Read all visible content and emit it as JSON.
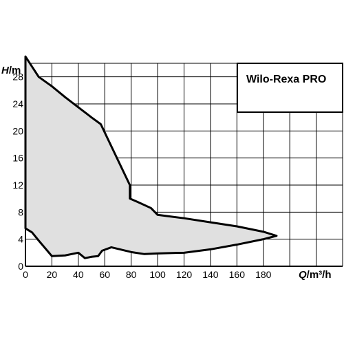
{
  "chart_data": {
    "type": "area",
    "title": "Wilo-Rexa PRO",
    "ylabel_var": "H",
    "ylabel_unit": "/m",
    "xlabel_var": "Q",
    "xlabel_unit": "/m³/h",
    "xlim": [
      0,
      240
    ],
    "ylim": [
      0,
      30
    ],
    "xticks": [
      0,
      20,
      40,
      60,
      80,
      100,
      120,
      140,
      160,
      180
    ],
    "yticks": [
      0,
      4,
      8,
      12,
      16,
      20,
      24,
      28
    ],
    "grid": true,
    "fill_color": "#e0e0e0",
    "line_color": "#000000",
    "upper_curve": [
      {
        "x": 0,
        "y": 31
      },
      {
        "x": 5,
        "y": 29.5
      },
      {
        "x": 10,
        "y": 28
      },
      {
        "x": 20,
        "y": 26.6
      },
      {
        "x": 30,
        "y": 25
      },
      {
        "x": 40,
        "y": 23.5
      },
      {
        "x": 50,
        "y": 22
      },
      {
        "x": 57,
        "y": 21
      },
      {
        "x": 79,
        "y": 12
      },
      {
        "x": 79,
        "y": 10
      },
      {
        "x": 85,
        "y": 9.5
      },
      {
        "x": 95,
        "y": 8.6
      },
      {
        "x": 100,
        "y": 7.6
      },
      {
        "x": 120,
        "y": 7.1
      },
      {
        "x": 140,
        "y": 6.5
      },
      {
        "x": 160,
        "y": 5.9
      },
      {
        "x": 180,
        "y": 5.1
      },
      {
        "x": 190,
        "y": 4.5
      }
    ],
    "lower_curve": [
      {
        "x": 0,
        "y": 5.6
      },
      {
        "x": 5,
        "y": 5
      },
      {
        "x": 10,
        "y": 3.8
      },
      {
        "x": 20,
        "y": 1.5
      },
      {
        "x": 30,
        "y": 1.6
      },
      {
        "x": 40,
        "y": 2
      },
      {
        "x": 45,
        "y": 1.2
      },
      {
        "x": 50,
        "y": 1.4
      },
      {
        "x": 55,
        "y": 1.5
      },
      {
        "x": 58,
        "y": 2.3
      },
      {
        "x": 65,
        "y": 2.8
      },
      {
        "x": 80,
        "y": 2.1
      },
      {
        "x": 90,
        "y": 1.8
      },
      {
        "x": 100,
        "y": 1.9
      },
      {
        "x": 120,
        "y": 2
      },
      {
        "x": 140,
        "y": 2.5
      },
      {
        "x": 160,
        "y": 3.2
      },
      {
        "x": 180,
        "y": 4
      },
      {
        "x": 190,
        "y": 4.5
      }
    ]
  }
}
